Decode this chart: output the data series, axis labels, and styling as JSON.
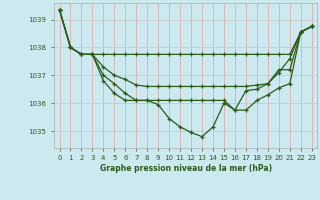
{
  "title": "Graphe pression niveau de la mer (hPa)",
  "background_color": "#cce9f0",
  "line_color": "#2d5a1b",
  "grid_color_minor": "#e8c8c8",
  "grid_color_major": "#c8c8c8",
  "xlim": [
    -0.5,
    23.5
  ],
  "ylim": [
    1034.4,
    1039.6
  ],
  "yticks": [
    1035,
    1036,
    1037,
    1038,
    1039
  ],
  "xtick_labels": [
    "0",
    "1",
    "2",
    "3",
    "4",
    "5",
    "6",
    "7",
    "8",
    "9",
    "10",
    "11",
    "12",
    "13",
    "14",
    "15",
    "16",
    "17",
    "18",
    "19",
    "20",
    "21",
    "22",
    "23"
  ],
  "series": [
    [
      1039.35,
      1038.0,
      1037.75,
      1037.75,
      1037.75,
      1037.75,
      1037.75,
      1037.75,
      1037.75,
      1037.75,
      1037.75,
      1037.75,
      1037.75,
      1037.75,
      1037.75,
      1037.75,
      1037.75,
      1037.75,
      1037.75,
      1037.75,
      1037.75,
      1037.75,
      1038.55,
      1038.75
    ],
    [
      1039.35,
      1038.0,
      1037.75,
      1037.75,
      1037.3,
      1037.0,
      1036.85,
      1036.65,
      1036.6,
      1036.6,
      1036.6,
      1036.6,
      1036.6,
      1036.6,
      1036.6,
      1036.6,
      1036.6,
      1036.6,
      1036.65,
      1036.7,
      1037.2,
      1037.2,
      1038.55,
      1038.75
    ],
    [
      1039.35,
      1038.0,
      1037.75,
      1037.75,
      1037.0,
      1036.7,
      1036.35,
      1036.1,
      1036.1,
      1036.1,
      1036.1,
      1036.1,
      1036.1,
      1036.1,
      1036.1,
      1036.1,
      1035.75,
      1035.75,
      1036.1,
      1036.3,
      1036.55,
      1036.7,
      1038.55,
      1038.75
    ],
    [
      1039.35,
      1038.0,
      1037.75,
      1037.75,
      1036.8,
      1036.35,
      1036.1,
      1036.1,
      1036.1,
      1035.95,
      1035.45,
      1035.15,
      1034.95,
      1034.8,
      1035.15,
      1036.0,
      1035.75,
      1036.45,
      1036.5,
      1036.7,
      1037.1,
      1037.6,
      1038.55,
      1038.75
    ]
  ]
}
